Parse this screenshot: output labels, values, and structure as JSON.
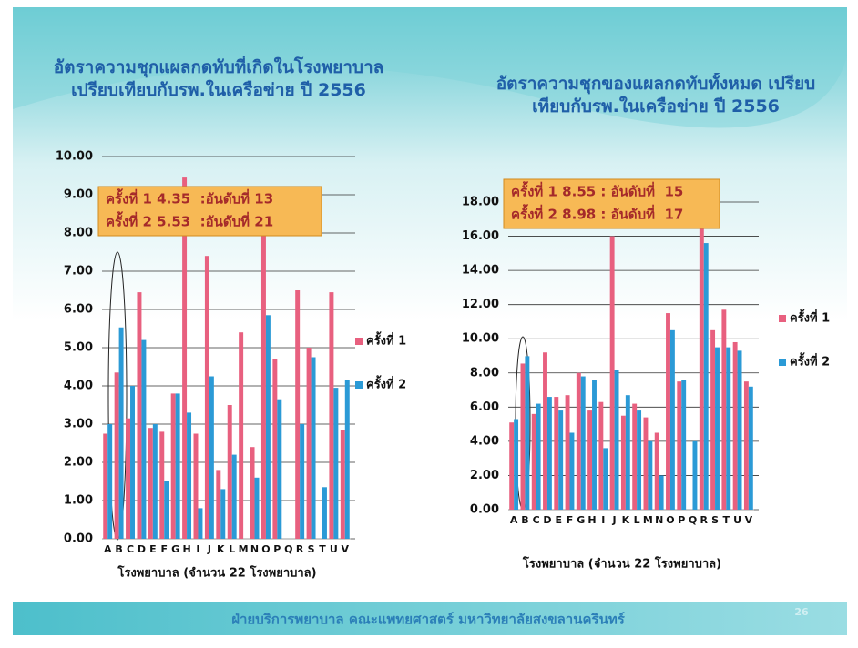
{
  "chart_data": [
    {
      "type": "bar",
      "title": "อัตราความชุกแผลกดทับที่เกิดในโรงพยาบาล เปรียบเทียบกับรพ.ในเครือข่าย ปี 2556",
      "x_label": "โรงพยาบาล (จำนวน 22 โรงพยาบาล)",
      "categories": [
        "A",
        "B",
        "C",
        "D",
        "E",
        "F",
        "G",
        "H",
        "I",
        "J",
        "K",
        "L",
        "M",
        "N",
        "O",
        "P",
        "Q",
        "R",
        "S",
        "T",
        "U",
        "V"
      ],
      "series": [
        {
          "name": "ครั้งที่ 1",
          "color": "#e8607f",
          "values": [
            2.75,
            4.35,
            3.15,
            6.45,
            2.9,
            2.8,
            3.8,
            9.45,
            2.75,
            7.4,
            1.8,
            3.5,
            5.4,
            2.4,
            8.1,
            4.7,
            0,
            6.5,
            5.0,
            0,
            6.45,
            2.85
          ]
        },
        {
          "name": "ครั้งที่ 2",
          "color": "#2b9ad6",
          "values": [
            3.0,
            5.53,
            4.0,
            5.2,
            3.0,
            1.5,
            3.8,
            3.3,
            0.8,
            4.25,
            1.3,
            2.2,
            0,
            1.6,
            5.85,
            3.65,
            0,
            3.0,
            4.75,
            1.35,
            3.95,
            4.15
          ]
        }
      ],
      "ylim": [
        0,
        10
      ],
      "yticks": [
        {
          "value": 0,
          "label": "0.00"
        },
        {
          "value": 1,
          "label": "1.00"
        },
        {
          "value": 2,
          "label": "2.00"
        },
        {
          "value": 3,
          "label": "3.00"
        },
        {
          "value": 4,
          "label": "4.00"
        },
        {
          "value": 5,
          "label": "5.00"
        },
        {
          "value": 6,
          "label": "6.00"
        },
        {
          "value": 7,
          "label": "7.00"
        },
        {
          "value": 8,
          "label": "8.00"
        },
        {
          "value": 9,
          "label": "9.00"
        },
        {
          "value": 10,
          "label": "10.00"
        }
      ],
      "grid": true,
      "legend": "right",
      "annotations": [
        "ครั้งที่ 1 4.35  :อันดับที่ 13",
        "ครั้งที่ 2 5.53  :อันดับที่ 21"
      ]
    },
    {
      "type": "bar",
      "title": "อัตราความชุกของแผลกดทับทั้งหมด เปรียบเทียบกับรพ.ในเครือข่าย ปี 2556",
      "x_label": "โรงพยาบาล (จำนวน 22 โรงพยาบาล)",
      "categories": [
        "A",
        "B",
        "C",
        "D",
        "E",
        "F",
        "G",
        "H",
        "I",
        "J",
        "K",
        "L",
        "M",
        "N",
        "O",
        "P",
        "Q",
        "R",
        "S",
        "T",
        "U",
        "V"
      ],
      "series": [
        {
          "name": "ครั้งที่ 1",
          "color": "#e8607f",
          "values": [
            5.1,
            8.55,
            5.6,
            9.2,
            6.6,
            6.7,
            8.0,
            5.8,
            6.3,
            16.0,
            5.5,
            6.2,
            5.4,
            4.5,
            11.5,
            7.5,
            0,
            17.8,
            10.5,
            11.7,
            9.8,
            7.5
          ]
        },
        {
          "name": "ครั้งที่ 2",
          "color": "#2b9ad6",
          "values": [
            5.3,
            8.98,
            6.2,
            6.6,
            5.8,
            4.5,
            7.8,
            7.6,
            3.6,
            8.2,
            6.7,
            5.8,
            4.0,
            2.0,
            10.5,
            7.6,
            4.0,
            15.6,
            9.5,
            9.5,
            9.3,
            7.2
          ]
        }
      ],
      "ylim": [
        0,
        18
      ],
      "yticks": [
        {
          "value": 0,
          "label": "0.00"
        },
        {
          "value": 2,
          "label": "2.00"
        },
        {
          "value": 4,
          "label": "4.00"
        },
        {
          "value": 6,
          "label": "6.00"
        },
        {
          "value": 8,
          "label": "8.00"
        },
        {
          "value": 10,
          "label": "10.00"
        },
        {
          "value": 12,
          "label": "12.00"
        },
        {
          "value": 14,
          "label": "14.00"
        },
        {
          "value": 16,
          "label": "16.00"
        },
        {
          "value": 18,
          "label": "18.00"
        }
      ],
      "grid": true,
      "legend": "right",
      "annotations": [
        "ครั้งที่ 1 8.55 : อันดับที่  15",
        "ครั้งที่ 2 8.98 : อันดับที่  17"
      ]
    }
  ],
  "footer": {
    "text": "ฝ่ายบริการพยาบาล คณะแพทยศาสตร์ มหาวิทยาลัยสงขลานครินทร์",
    "page_number": "26"
  }
}
